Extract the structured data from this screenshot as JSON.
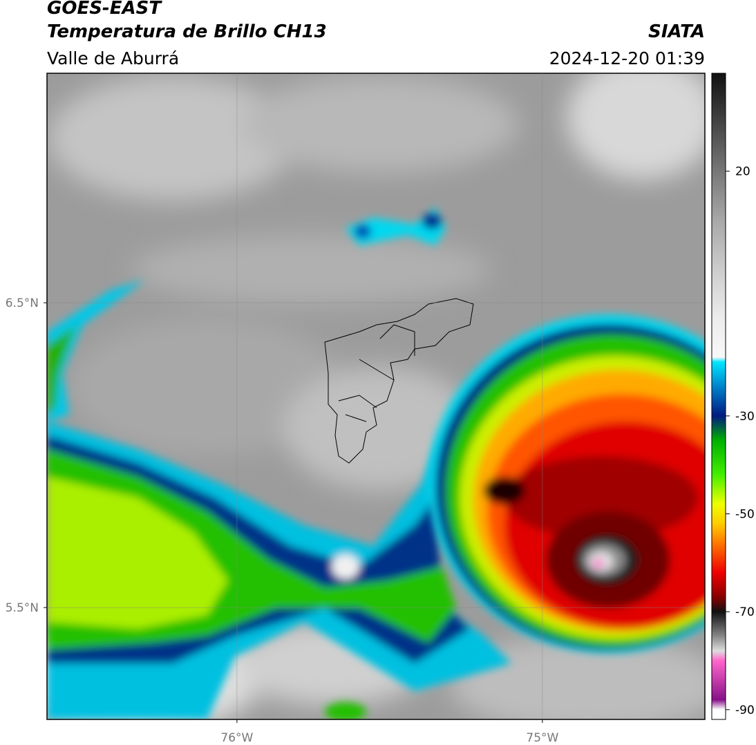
{
  "header": {
    "title": "GOES-EAST",
    "subtitle": "Temperatura de Brillo CH13",
    "region": "Valle de Aburrá",
    "source": "SIATA",
    "timestamp": "2024-12-20 01:39"
  },
  "map": {
    "lonlim": [
      -76.622,
      -74.468
    ],
    "latlim": [
      5.133,
      7.253
    ],
    "lonticks": [
      {
        "value": -76,
        "label": "76°W"
      },
      {
        "value": -75,
        "label": "75°W"
      }
    ],
    "latticks": [
      {
        "value": 6.5,
        "label": "6.5°N"
      },
      {
        "value": 5.5,
        "label": "5.5°N"
      }
    ],
    "grid": true
  },
  "colorbar": {
    "lim": [
      -92,
      40
    ],
    "ticks": [
      20,
      -30,
      -50,
      -70,
      -90
    ],
    "stops": [
      {
        "value": 40,
        "color": "#111111"
      },
      {
        "value": 30,
        "color": "#444444"
      },
      {
        "value": 20,
        "color": "#777777"
      },
      {
        "value": 10,
        "color": "#a8a8a8"
      },
      {
        "value": 0,
        "color": "#cccccc"
      },
      {
        "value": -10,
        "color": "#ececec"
      },
      {
        "value": -18,
        "color": "#f8f8f8"
      },
      {
        "value": -19,
        "color": "#00e5ff"
      },
      {
        "value": -25,
        "color": "#0070c0"
      },
      {
        "value": -30,
        "color": "#001a80"
      },
      {
        "value": -35,
        "color": "#00b000"
      },
      {
        "value": -42,
        "color": "#44ee00"
      },
      {
        "value": -48,
        "color": "#eeff00"
      },
      {
        "value": -52,
        "color": "#ffcc00"
      },
      {
        "value": -56,
        "color": "#ff7700"
      },
      {
        "value": -62,
        "color": "#ee0000"
      },
      {
        "value": -67,
        "color": "#880000"
      },
      {
        "value": -70,
        "color": "#111111"
      },
      {
        "value": -75,
        "color": "#888888"
      },
      {
        "value": -78,
        "color": "#dddddd"
      },
      {
        "value": -80,
        "color": "#ff66cc"
      },
      {
        "value": -88,
        "color": "#881188"
      },
      {
        "value": -90,
        "color": "#ffffff"
      }
    ]
  }
}
